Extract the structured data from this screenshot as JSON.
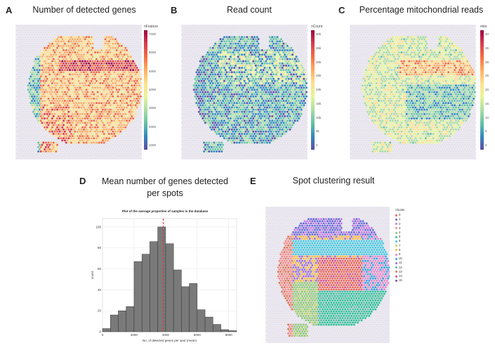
{
  "panels": {
    "A": {
      "letter": "A",
      "title": "Number of detected genes",
      "cbar_label": "nFeature",
      "ticks": [
        "7000",
        "6000",
        "5000",
        "4000",
        "3000",
        "2000",
        "1000"
      ]
    },
    "B": {
      "letter": "B",
      "title": "Read count",
      "cbar_label": "nCount",
      "ticks": [
        "40k",
        "35k",
        "30k",
        "25k",
        "20k",
        "15k",
        "10k",
        "5k",
        "0"
      ]
    },
    "C": {
      "letter": "C",
      "title": "Percentage mitochondrial reads",
      "cbar_label": "mito",
      "ticks": [
        "40",
        "35",
        "30",
        "25",
        "20",
        "15",
        "10",
        "5",
        "0"
      ]
    },
    "D": {
      "letter": "D",
      "title_line1": "Mean number of genes detected",
      "title_line2": "per spots"
    },
    "E": {
      "letter": "E",
      "title": "Spot clustering result"
    }
  },
  "chart_data": {
    "type": "bar",
    "title": "Plot of the average properties of samples in the database",
    "xlabel": "No. of detected genes per spot (mean)",
    "ylabel": "count",
    "xlim": [
      0,
      8500
    ],
    "ylim": [
      0,
      108
    ],
    "x_ticks": [
      "0",
      "2000",
      "4000",
      "6000",
      "8000"
    ],
    "y_ticks": [
      "0",
      "20",
      "40",
      "60",
      "80",
      "100"
    ],
    "bin_edges": [
      0,
      500,
      1000,
      1500,
      2000,
      2500,
      3000,
      3500,
      4000,
      4500,
      5000,
      5500,
      6000,
      6500,
      7000,
      7500,
      8000,
      8500
    ],
    "values": [
      3,
      16,
      20,
      24,
      67,
      74,
      86,
      100,
      84,
      59,
      43,
      46,
      21,
      14,
      7,
      2,
      1
    ],
    "mean_line_x": 3850,
    "mean_line_color": "#e0302a",
    "bar_color": "#7a7a7a"
  },
  "legend": {
    "title": "Cluster",
    "items": [
      {
        "label": "0",
        "color": "#e8685b"
      },
      {
        "label": "1",
        "color": "#6c6bd8"
      },
      {
        "label": "2",
        "color": "#c17be0"
      },
      {
        "label": "3",
        "color": "#f08c8c"
      },
      {
        "label": "4",
        "color": "#8fc77a"
      },
      {
        "label": "5",
        "color": "#2fbf9a"
      },
      {
        "label": "6",
        "color": "#49c8e0"
      },
      {
        "label": "7",
        "color": "#b9d26a"
      },
      {
        "label": "8",
        "color": "#f2b84a"
      },
      {
        "label": "9",
        "color": "#e089c9"
      },
      {
        "label": "10",
        "color": "#3a9fd8"
      },
      {
        "label": "11",
        "color": "#9b6fd1"
      },
      {
        "label": "12",
        "color": "#5fb8a8"
      },
      {
        "label": "13",
        "color": "#d77a5a"
      },
      {
        "label": "14",
        "color": "#d04f90"
      },
      {
        "label": "15",
        "color": "#7a4fb0"
      }
    ]
  },
  "colors": {
    "spectral": [
      "#5e4fa2",
      "#3288bd",
      "#66c2a5",
      "#abdda4",
      "#e6f598",
      "#fee08b",
      "#fdae61",
      "#f46d43",
      "#d53e4f",
      "#9e0142"
    ]
  }
}
